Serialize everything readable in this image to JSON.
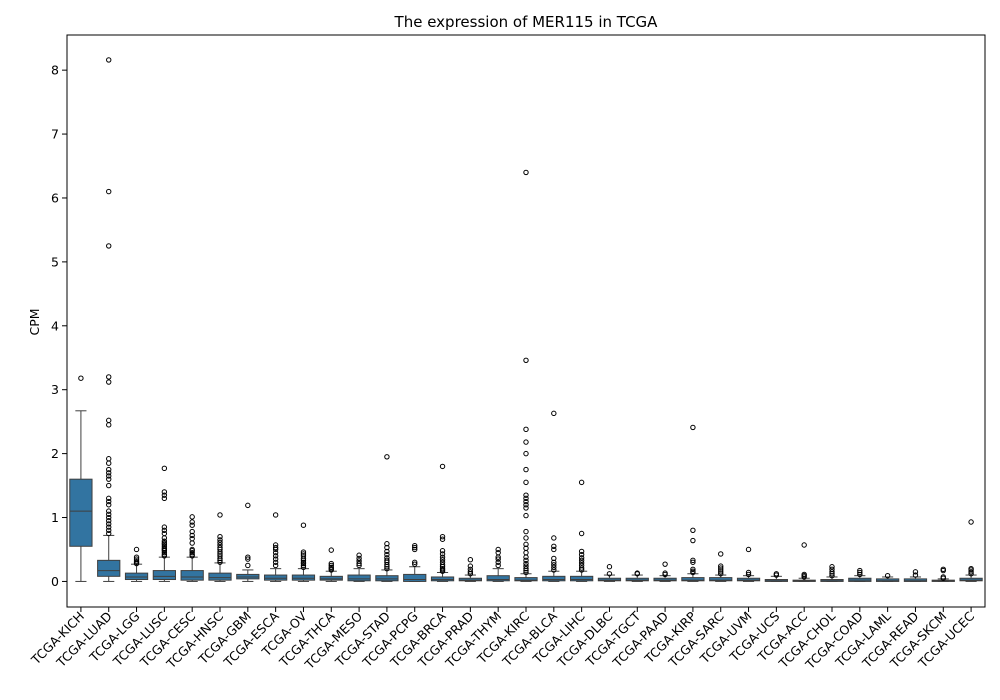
{
  "chart_data": {
    "type": "box",
    "title": "The expression of MER115 in TCGA",
    "xlabel": "",
    "ylabel": "CPM",
    "ylim": [
      -0.4,
      8.55
    ],
    "yticks": [
      0,
      1,
      2,
      3,
      4,
      5,
      6,
      7,
      8
    ],
    "grid": false,
    "box_color": "#3274a1",
    "categories": [
      "TCGA-KICH",
      "TCGA-LUAD",
      "TCGA-LGG",
      "TCGA-LUSC",
      "TCGA-CESC",
      "TCGA-HNSC",
      "TCGA-GBM",
      "TCGA-ESCA",
      "TCGA-OV",
      "TCGA-THCA",
      "TCGA-MESO",
      "TCGA-STAD",
      "TCGA-PCPG",
      "TCGA-BRCA",
      "TCGA-PRAD",
      "TCGA-THYM",
      "TCGA-KIRC",
      "TCGA-BLCA",
      "TCGA-LIHC",
      "TCGA-DLBC",
      "TCGA-TGCT",
      "TCGA-PAAD",
      "TCGA-KIRP",
      "TCGA-SARC",
      "TCGA-UVM",
      "TCGA-UCS",
      "TCGA-ACC",
      "TCGA-CHOL",
      "TCGA-COAD",
      "TCGA-LAML",
      "TCGA-READ",
      "TCGA-SKCM",
      "TCGA-UCEC"
    ],
    "boxes": [
      {
        "q1": 0.55,
        "median": 1.1,
        "q3": 1.6,
        "whislo": 0.0,
        "whishi": 2.67,
        "fliers": [
          3.18
        ]
      },
      {
        "q1": 0.08,
        "median": 0.17,
        "q3": 0.33,
        "whislo": 0.0,
        "whishi": 0.72,
        "fliers": [
          0.75,
          0.8,
          0.85,
          0.9,
          0.95,
          1.0,
          1.05,
          1.1,
          1.2,
          1.25,
          1.3,
          1.5,
          1.6,
          1.65,
          1.7,
          1.75,
          1.85,
          1.92,
          2.45,
          2.52,
          3.12,
          3.2,
          5.25,
          6.1,
          8.16
        ]
      },
      {
        "q1": 0.03,
        "median": 0.07,
        "q3": 0.13,
        "whislo": 0.0,
        "whishi": 0.27,
        "fliers": [
          0.28,
          0.3,
          0.32,
          0.35,
          0.38,
          0.5
        ]
      },
      {
        "q1": 0.03,
        "median": 0.08,
        "q3": 0.17,
        "whislo": 0.0,
        "whishi": 0.38,
        "fliers": [
          0.4,
          0.42,
          0.45,
          0.48,
          0.5,
          0.52,
          0.55,
          0.58,
          0.6,
          0.63,
          0.68,
          0.75,
          0.8,
          0.85,
          1.3,
          1.35,
          1.4,
          1.77
        ]
      },
      {
        "q1": 0.02,
        "median": 0.07,
        "q3": 0.17,
        "whislo": 0.0,
        "whishi": 0.38,
        "fliers": [
          0.4,
          0.42,
          0.45,
          0.48,
          0.5,
          0.6,
          0.67,
          0.72,
          0.78,
          0.88,
          0.93,
          1.01
        ]
      },
      {
        "q1": 0.02,
        "median": 0.06,
        "q3": 0.13,
        "whislo": 0.0,
        "whishi": 0.29,
        "fliers": [
          0.3,
          0.33,
          0.36,
          0.4,
          0.43,
          0.46,
          0.5,
          0.53,
          0.57,
          0.61,
          0.65,
          0.7,
          1.04
        ]
      },
      {
        "q1": 0.04,
        "median": 0.07,
        "q3": 0.11,
        "whislo": 0.0,
        "whishi": 0.18,
        "fliers": [
          0.25,
          0.35,
          0.38,
          1.19
        ]
      },
      {
        "q1": 0.02,
        "median": 0.05,
        "q3": 0.1,
        "whislo": 0.0,
        "whishi": 0.2,
        "fliers": [
          0.25,
          0.3,
          0.35,
          0.4,
          0.45,
          0.5,
          0.53,
          0.57,
          1.04
        ]
      },
      {
        "q1": 0.02,
        "median": 0.05,
        "q3": 0.1,
        "whislo": 0.0,
        "whishi": 0.2,
        "fliers": [
          0.22,
          0.25,
          0.28,
          0.3,
          0.33,
          0.36,
          0.4,
          0.43,
          0.46,
          0.88
        ]
      },
      {
        "q1": 0.02,
        "median": 0.04,
        "q3": 0.08,
        "whislo": 0.0,
        "whishi": 0.16,
        "fliers": [
          0.18,
          0.2,
          0.22,
          0.25,
          0.28,
          0.49
        ]
      },
      {
        "q1": 0.01,
        "median": 0.04,
        "q3": 0.1,
        "whislo": 0.0,
        "whishi": 0.2,
        "fliers": [
          0.25,
          0.28,
          0.32,
          0.36,
          0.41
        ]
      },
      {
        "q1": 0.01,
        "median": 0.04,
        "q3": 0.09,
        "whislo": 0.0,
        "whishi": 0.18,
        "fliers": [
          0.2,
          0.23,
          0.26,
          0.3,
          0.33,
          0.37,
          0.42,
          0.47,
          0.53,
          0.59,
          1.95
        ]
      },
      {
        "q1": 0.0,
        "median": 0.03,
        "q3": 0.11,
        "whislo": 0.0,
        "whishi": 0.23,
        "fliers": [
          0.27,
          0.3,
          0.5,
          0.53,
          0.56
        ]
      },
      {
        "q1": 0.01,
        "median": 0.03,
        "q3": 0.07,
        "whislo": 0.0,
        "whishi": 0.14,
        "fliers": [
          0.16,
          0.18,
          0.2,
          0.23,
          0.26,
          0.3,
          0.34,
          0.38,
          0.43,
          0.48,
          0.66,
          0.7,
          1.8
        ]
      },
      {
        "q1": 0.01,
        "median": 0.02,
        "q3": 0.05,
        "whislo": 0.0,
        "whishi": 0.1,
        "fliers": [
          0.12,
          0.15,
          0.19,
          0.24,
          0.34
        ]
      },
      {
        "q1": 0.01,
        "median": 0.03,
        "q3": 0.09,
        "whislo": 0.0,
        "whishi": 0.2,
        "fliers": [
          0.25,
          0.3,
          0.35,
          0.38,
          0.45,
          0.5
        ]
      },
      {
        "q1": 0.01,
        "median": 0.02,
        "q3": 0.06,
        "whislo": 0.0,
        "whishi": 0.12,
        "fliers": [
          0.14,
          0.17,
          0.2,
          0.24,
          0.28,
          0.33,
          0.38,
          0.45,
          0.52,
          0.58,
          0.68,
          0.78,
          1.03,
          1.15,
          1.2,
          1.25,
          1.3,
          1.35,
          1.55,
          1.75,
          2.0,
          2.18,
          2.38,
          3.46,
          6.4
        ]
      },
      {
        "q1": 0.01,
        "median": 0.03,
        "q3": 0.08,
        "whislo": 0.0,
        "whishi": 0.16,
        "fliers": [
          0.18,
          0.22,
          0.26,
          0.3,
          0.36,
          0.5,
          0.55,
          0.68,
          2.63
        ]
      },
      {
        "q1": 0.01,
        "median": 0.03,
        "q3": 0.08,
        "whislo": 0.0,
        "whishi": 0.16,
        "fliers": [
          0.18,
          0.21,
          0.25,
          0.29,
          0.33,
          0.37,
          0.42,
          0.47,
          0.75,
          1.55
        ]
      },
      {
        "q1": 0.01,
        "median": 0.02,
        "q3": 0.05,
        "whislo": 0.0,
        "whishi": 0.1,
        "fliers": [
          0.12,
          0.23
        ]
      },
      {
        "q1": 0.01,
        "median": 0.02,
        "q3": 0.05,
        "whislo": 0.0,
        "whishi": 0.1,
        "fliers": [
          0.12,
          0.13
        ]
      },
      {
        "q1": 0.01,
        "median": 0.02,
        "q3": 0.05,
        "whislo": 0.0,
        "whishi": 0.09,
        "fliers": [
          0.11,
          0.13,
          0.27
        ]
      },
      {
        "q1": 0.01,
        "median": 0.02,
        "q3": 0.06,
        "whislo": 0.0,
        "whishi": 0.12,
        "fliers": [
          0.14,
          0.16,
          0.19,
          0.3,
          0.33,
          0.64,
          0.8,
          2.41
        ]
      },
      {
        "q1": 0.01,
        "median": 0.02,
        "q3": 0.06,
        "whislo": 0.0,
        "whishi": 0.1,
        "fliers": [
          0.12,
          0.15,
          0.18,
          0.21,
          0.24,
          0.43
        ]
      },
      {
        "q1": 0.01,
        "median": 0.02,
        "q3": 0.05,
        "whislo": 0.0,
        "whishi": 0.09,
        "fliers": [
          0.11,
          0.14,
          0.5
        ]
      },
      {
        "q1": 0.0,
        "median": 0.01,
        "q3": 0.03,
        "whislo": 0.0,
        "whishi": 0.08,
        "fliers": [
          0.1,
          0.12
        ]
      },
      {
        "q1": 0.0,
        "median": 0.01,
        "q3": 0.02,
        "whislo": 0.0,
        "whishi": 0.05,
        "fliers": [
          0.07,
          0.09,
          0.11,
          0.57
        ]
      },
      {
        "q1": 0.0,
        "median": 0.01,
        "q3": 0.03,
        "whislo": 0.0,
        "whishi": 0.07,
        "fliers": [
          0.09,
          0.12,
          0.15,
          0.19,
          0.23
        ]
      },
      {
        "q1": 0.0,
        "median": 0.02,
        "q3": 0.05,
        "whislo": 0.0,
        "whishi": 0.09,
        "fliers": [
          0.11,
          0.14,
          0.17
        ]
      },
      {
        "q1": 0.0,
        "median": 0.01,
        "q3": 0.04,
        "whislo": 0.0,
        "whishi": 0.07,
        "fliers": [
          0.09
        ]
      },
      {
        "q1": 0.0,
        "median": 0.01,
        "q3": 0.04,
        "whislo": 0.0,
        "whishi": 0.07,
        "fliers": [
          0.1,
          0.15
        ]
      },
      {
        "q1": 0.0,
        "median": 0.01,
        "q3": 0.02,
        "whislo": 0.0,
        "whishi": 0.04,
        "fliers": [
          0.05,
          0.07,
          0.17,
          0.19
        ]
      },
      {
        "q1": 0.01,
        "median": 0.02,
        "q3": 0.05,
        "whislo": 0.0,
        "whishi": 0.1,
        "fliers": [
          0.12,
          0.15,
          0.18,
          0.2,
          0.93
        ]
      }
    ]
  }
}
